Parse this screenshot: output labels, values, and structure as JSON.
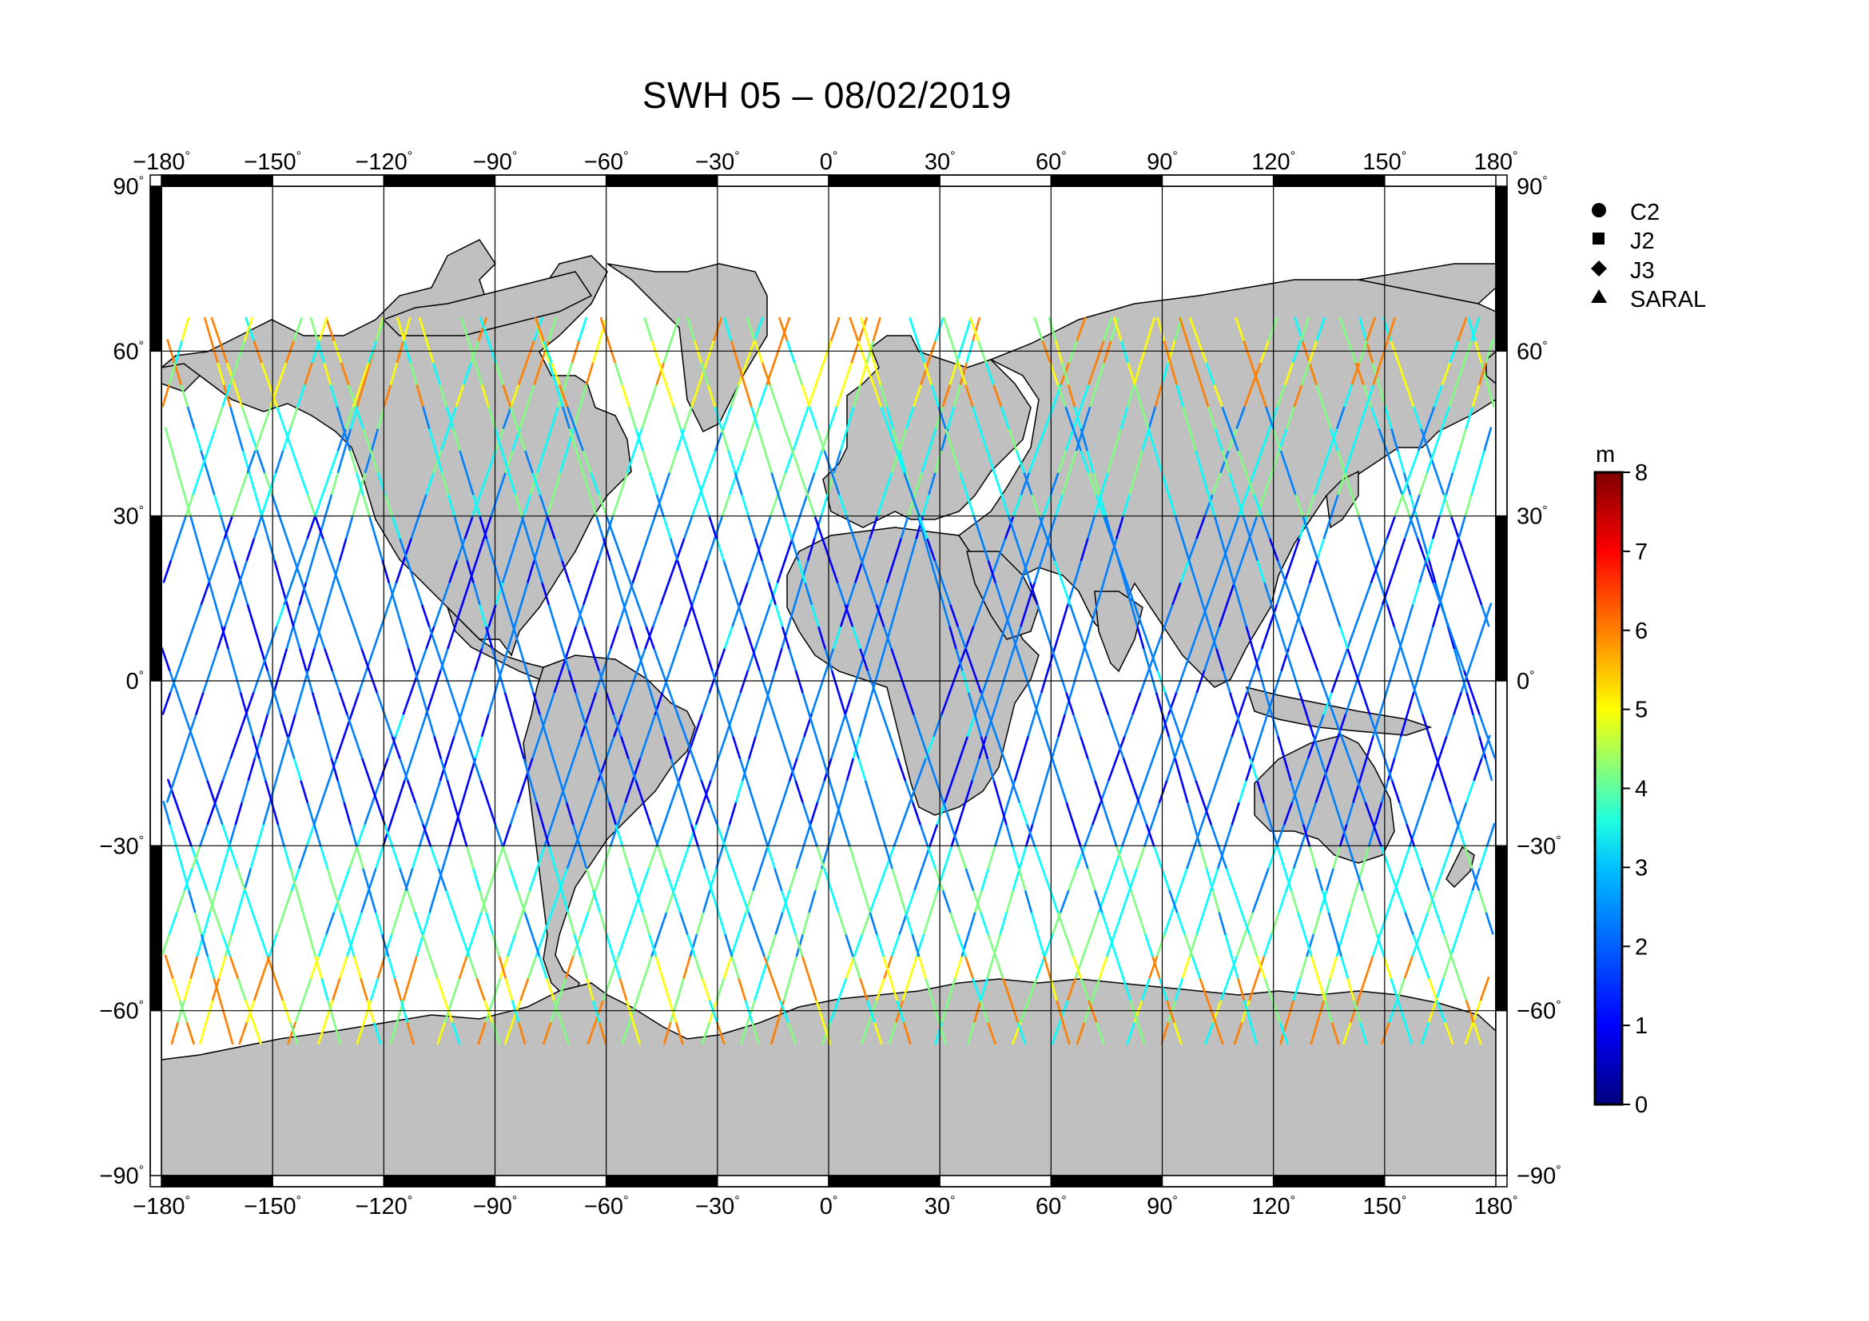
{
  "title": "SWH 05 – 08/02/2019",
  "map": {
    "lon_ticks": [
      "−180",
      "−150",
      "−120",
      "−90",
      "−60",
      "−30",
      "0",
      "30",
      "60",
      "90",
      "120",
      "150",
      "180"
    ],
    "lat_ticks_left": [
      "90",
      "60",
      "30",
      "0",
      "−30",
      "−60",
      "−90"
    ],
    "lat_ticks_right": [
      "90",
      "60",
      "30",
      "0",
      "−30",
      "−60",
      "−90"
    ],
    "degree_symbol": "°",
    "colors": {
      "land": "#c0c0c0",
      "ocean": "#ffffff",
      "grid": "#000000"
    }
  },
  "legend": {
    "missions": [
      {
        "label": "C2",
        "symbol": "circle"
      },
      {
        "label": "J2",
        "symbol": "square"
      },
      {
        "label": "J3",
        "symbol": "diamond"
      },
      {
        "label": "SARAL",
        "symbol": "triangle"
      }
    ]
  },
  "colorbar": {
    "unit": "m",
    "ticks": [
      "8",
      "7",
      "6",
      "5",
      "4",
      "3",
      "2",
      "1",
      "0"
    ],
    "colors": [
      "#00007f",
      "#0000ff",
      "#007fff",
      "#00ffff",
      "#7fff7f",
      "#ffff00",
      "#ff7f00",
      "#ff0000",
      "#7f0000"
    ]
  }
}
